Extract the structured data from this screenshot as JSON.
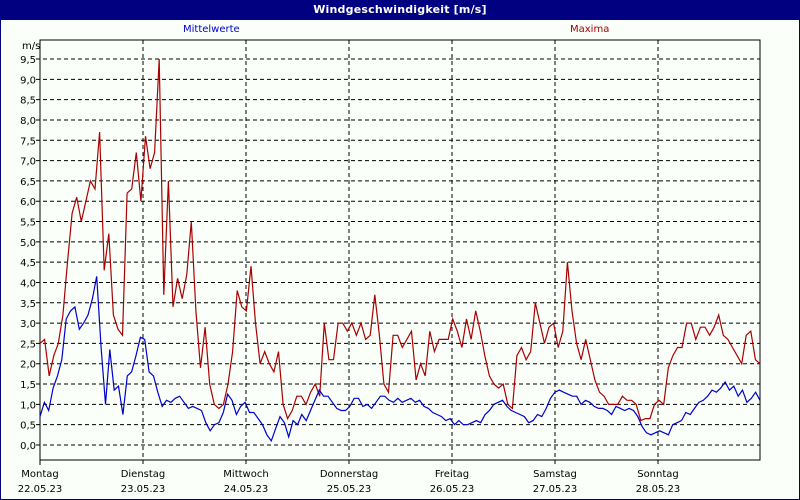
{
  "window": {
    "title": "Windgeschwindigkeit [m/s]"
  },
  "legend": {
    "mittel": "Mittelwerte",
    "maxima": "Maxima"
  },
  "colors": {
    "titlebar": "#000080",
    "mittel": "#0000cc",
    "maxima": "#aa0000",
    "grid": "#000000",
    "background": "#fafffa"
  },
  "chart_data": {
    "type": "line",
    "title": "Windgeschwindigkeit [m/s]",
    "xlabel": "",
    "ylabel": "m/s",
    "ylim": [
      -0.4,
      9.9
    ],
    "yticks": [
      "0,0",
      "0,5",
      "1,0",
      "1,5",
      "2,0",
      "2,5",
      "3,0",
      "3,5",
      "4,0",
      "4,5",
      "5,0",
      "5,5",
      "6,0",
      "6,5",
      "7,0",
      "7,5",
      "8,0",
      "8,5",
      "9,0",
      "9,5"
    ],
    "grid": true,
    "legend_position": "top",
    "categories": [
      {
        "day": "Montag",
        "date": "22.05.23"
      },
      {
        "day": "Dienstag",
        "date": "23.05.23"
      },
      {
        "day": "Mittwoch",
        "date": "24.05.23"
      },
      {
        "day": "Donnerstag",
        "date": "25.05.23"
      },
      {
        "day": "Freitag",
        "date": "26.05.23"
      },
      {
        "day": "Samstag",
        "date": "27.05.23"
      },
      {
        "day": "Sonntag",
        "date": "28.05.23"
      }
    ],
    "x_hours_step": 4,
    "series": [
      {
        "name": "Mittelwerte",
        "color": "#0000cc",
        "values": [
          0.7,
          1.05,
          0.85,
          1.4,
          1.7,
          2.1,
          3.1,
          3.3,
          3.4,
          2.85,
          3.0,
          3.2,
          3.6,
          4.15,
          2.4,
          1.0,
          2.35,
          1.35,
          1.45,
          0.75,
          1.7,
          1.8,
          2.2,
          2.65,
          2.6,
          1.8,
          1.7,
          1.3,
          0.95,
          1.1,
          1.05,
          1.15,
          1.2,
          1.05,
          0.9,
          0.95,
          0.9,
          0.85,
          0.55,
          0.35,
          0.5,
          0.55,
          0.8,
          1.25,
          1.1,
          0.75,
          0.95,
          1.05,
          0.8,
          0.8,
          0.65,
          0.5,
          0.25,
          0.1,
          0.4,
          0.7,
          0.55,
          0.2,
          0.6,
          0.5,
          0.75,
          0.6,
          0.85,
          1.1,
          1.35,
          1.2,
          1.2,
          1.05,
          0.9,
          0.85,
          0.85,
          0.95,
          1.15,
          1.15,
          0.95,
          1.0,
          0.9,
          1.05,
          1.2,
          1.2,
          1.1,
          1.05,
          1.15,
          1.05,
          1.1,
          1.15,
          1.05,
          1.1,
          0.95,
          0.9,
          0.8,
          0.75,
          0.7,
          0.6,
          0.65,
          0.5,
          0.6,
          0.5,
          0.5,
          0.55,
          0.6,
          0.55,
          0.75,
          0.85,
          1.0,
          1.05,
          1.1,
          0.95,
          0.85,
          0.8,
          0.75,
          0.7,
          0.55,
          0.6,
          0.75,
          0.7,
          0.9,
          1.15,
          1.3,
          1.35,
          1.3,
          1.25,
          1.2,
          1.2,
          1.0,
          1.1,
          1.05,
          0.95,
          0.9,
          0.9,
          0.85,
          0.75,
          0.95,
          0.9,
          0.85,
          0.9,
          0.85,
          0.7,
          0.45,
          0.3,
          0.25,
          0.3,
          0.35,
          0.3,
          0.25,
          0.5,
          0.55,
          0.6,
          0.8,
          0.75,
          0.9,
          1.05,
          1.1,
          1.2,
          1.35,
          1.3,
          1.4,
          1.55,
          1.35,
          1.45,
          1.2,
          1.35,
          1.05,
          1.15,
          1.3,
          1.1
        ]
      },
      {
        "name": "Maxima",
        "color": "#aa0000",
        "values": [
          2.5,
          2.6,
          1.7,
          2.2,
          2.5,
          3.2,
          4.5,
          5.7,
          6.1,
          5.5,
          6.0,
          6.5,
          6.3,
          7.7,
          4.3,
          5.2,
          3.2,
          2.85,
          2.7,
          6.2,
          6.3,
          7.2,
          6.0,
          7.6,
          6.8,
          7.2,
          9.5,
          3.7,
          6.5,
          3.4,
          4.1,
          3.6,
          4.2,
          5.5,
          3.3,
          1.9,
          2.9,
          1.5,
          1.0,
          0.9,
          1.0,
          1.5,
          2.3,
          3.8,
          3.4,
          3.3,
          4.4,
          3.0,
          2.0,
          2.3,
          2.0,
          1.8,
          2.3,
          1.0,
          0.65,
          0.85,
          1.2,
          1.2,
          1.0,
          1.3,
          1.5,
          1.2,
          3.0,
          2.1,
          2.1,
          3.0,
          3.0,
          2.8,
          3.0,
          2.7,
          3.0,
          2.6,
          2.7,
          3.7,
          2.7,
          1.5,
          1.3,
          2.7,
          2.7,
          2.4,
          2.6,
          2.8,
          1.6,
          2.0,
          1.7,
          2.8,
          2.3,
          2.6,
          2.6,
          2.6,
          3.1,
          2.8,
          2.4,
          3.1,
          2.6,
          3.3,
          2.8,
          2.2,
          1.7,
          1.5,
          1.4,
          1.5,
          1.0,
          0.9,
          2.2,
          2.4,
          2.1,
          2.3,
          3.5,
          3.0,
          2.5,
          2.9,
          3.0,
          2.4,
          2.8,
          4.5,
          3.3,
          2.5,
          2.1,
          2.6,
          2.1,
          1.6,
          1.3,
          1.2,
          1.0,
          1.0,
          1.0,
          1.2,
          1.1,
          1.1,
          1.0,
          0.6,
          0.65,
          0.65,
          1.0,
          1.1,
          1.0,
          1.9,
          2.2,
          2.4,
          2.4,
          3.0,
          3.0,
          2.6,
          2.9,
          2.9,
          2.7,
          2.9,
          3.2,
          2.7,
          2.6,
          2.4,
          2.2,
          2.0,
          2.7,
          2.8,
          2.1,
          2.0
        ]
      }
    ]
  },
  "axis": {
    "unit_label": "m/s"
  }
}
